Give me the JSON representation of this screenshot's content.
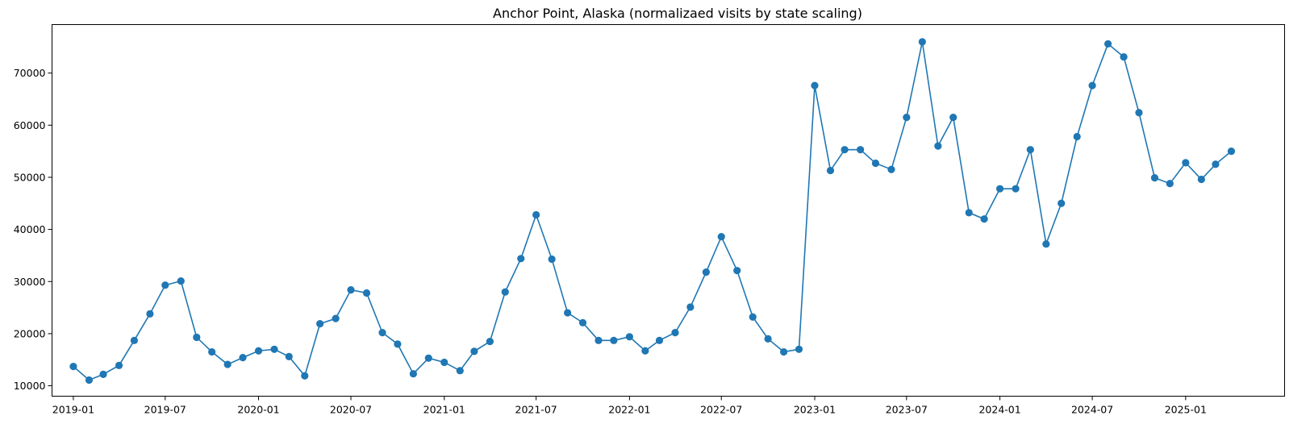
{
  "chart_data": {
    "type": "line",
    "title": "Anchor Point, Alaska (normalizaed visits by state scaling)",
    "xlabel": "",
    "ylabel": "",
    "x_tick_labels": [
      "2019-01",
      "2019-07",
      "2020-01",
      "2020-07",
      "2021-01",
      "2021-07",
      "2022-01",
      "2022-07",
      "2023-01",
      "2023-07",
      "2024-01",
      "2024-07",
      "2025-01"
    ],
    "y_tick_values": [
      10000,
      20000,
      30000,
      40000,
      50000,
      60000,
      70000
    ],
    "y_tick_labels": [
      "10000",
      "20000",
      "30000",
      "40000",
      "50000",
      "60000",
      "70000"
    ],
    "xlim": [
      "2018-11-20",
      "2025-07-15"
    ],
    "ylim": [
      8000,
      79300
    ],
    "grid": false,
    "colors": {
      "series": "#1f77b4",
      "axes": "#000000",
      "background": "#ffffff"
    },
    "series": [
      {
        "marker": "circle",
        "x": [
          "2019-01",
          "2019-02",
          "2019-03",
          "2019-04",
          "2019-05",
          "2019-06",
          "2019-07",
          "2019-08",
          "2019-09",
          "2019-10",
          "2019-11",
          "2019-12",
          "2020-01",
          "2020-02",
          "2020-03",
          "2020-04",
          "2020-05",
          "2020-06",
          "2020-07",
          "2020-08",
          "2020-09",
          "2020-10",
          "2020-11",
          "2020-12",
          "2021-01",
          "2021-02",
          "2021-03",
          "2021-04",
          "2021-05",
          "2021-06",
          "2021-07",
          "2021-08",
          "2021-09",
          "2021-10",
          "2021-11",
          "2021-12",
          "2022-01",
          "2022-02",
          "2022-03",
          "2022-04",
          "2022-05",
          "2022-06",
          "2022-07",
          "2022-08",
          "2022-09",
          "2022-10",
          "2022-11",
          "2022-12",
          "2023-01",
          "2023-02",
          "2023-03",
          "2023-04",
          "2023-05",
          "2023-06",
          "2023-07",
          "2023-08",
          "2023-09",
          "2023-10",
          "2023-11",
          "2023-12",
          "2024-01",
          "2024-02",
          "2024-03",
          "2024-04",
          "2024-05",
          "2024-06",
          "2024-07",
          "2024-08",
          "2024-09",
          "2024-10",
          "2024-11",
          "2024-12",
          "2025-01",
          "2025-02",
          "2025-03",
          "2025-04"
        ],
        "values": [
          13700,
          11100,
          12200,
          13900,
          18700,
          23800,
          29300,
          30100,
          19300,
          16500,
          14100,
          15400,
          16700,
          17000,
          15600,
          11900,
          21900,
          22900,
          28400,
          27800,
          20200,
          18000,
          12300,
          15300,
          14500,
          12900,
          16600,
          18500,
          28000,
          34400,
          42800,
          34300,
          24000,
          22100,
          18700,
          18700,
          19400,
          16700,
          18700,
          20200,
          25100,
          31800,
          38600,
          32100,
          23200,
          19000,
          16500,
          17000,
          67600,
          51300,
          55300,
          55300,
          52700,
          51500,
          61500,
          76000,
          56000,
          61500,
          43200,
          42000,
          47800,
          47800,
          55300,
          37200,
          45000,
          57800,
          67600,
          75600,
          73100,
          62400,
          49900,
          48800,
          52800,
          49600,
          52500,
          55000
        ]
      }
    ]
  }
}
